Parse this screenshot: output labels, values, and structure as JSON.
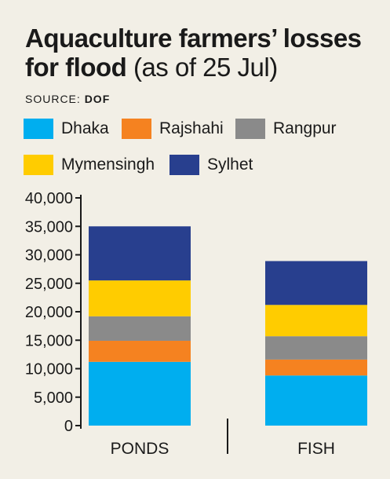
{
  "title": {
    "bold": "Aquaculture farmers’ losses for flood",
    "normal": "(as of 25 Jul)"
  },
  "source": {
    "label": "SOURCE:",
    "value": "DOF"
  },
  "chart_data": {
    "type": "bar",
    "stacked": true,
    "categories": [
      "PONDS",
      "FISH"
    ],
    "series": [
      {
        "name": "Dhaka",
        "color": "#00aeef",
        "values": [
          11200,
          8800
        ]
      },
      {
        "name": "Rajshahi",
        "color": "#f58220",
        "values": [
          3700,
          2800
        ]
      },
      {
        "name": "Rangpur",
        "color": "#8a8a8a",
        "values": [
          4300,
          4100
        ]
      },
      {
        "name": "Mymensingh",
        "color": "#ffcc00",
        "values": [
          6300,
          5500
        ]
      },
      {
        "name": "Sylhet",
        "color": "#283f8e",
        "values": [
          9500,
          7700
        ]
      }
    ],
    "ylim": [
      0,
      40000
    ],
    "yticks": [
      "0",
      "5,000",
      "10,000",
      "15,000",
      "20,000",
      "25,000",
      "30,000",
      "35,000",
      "40,000"
    ],
    "legend": "top",
    "grid": false
  }
}
